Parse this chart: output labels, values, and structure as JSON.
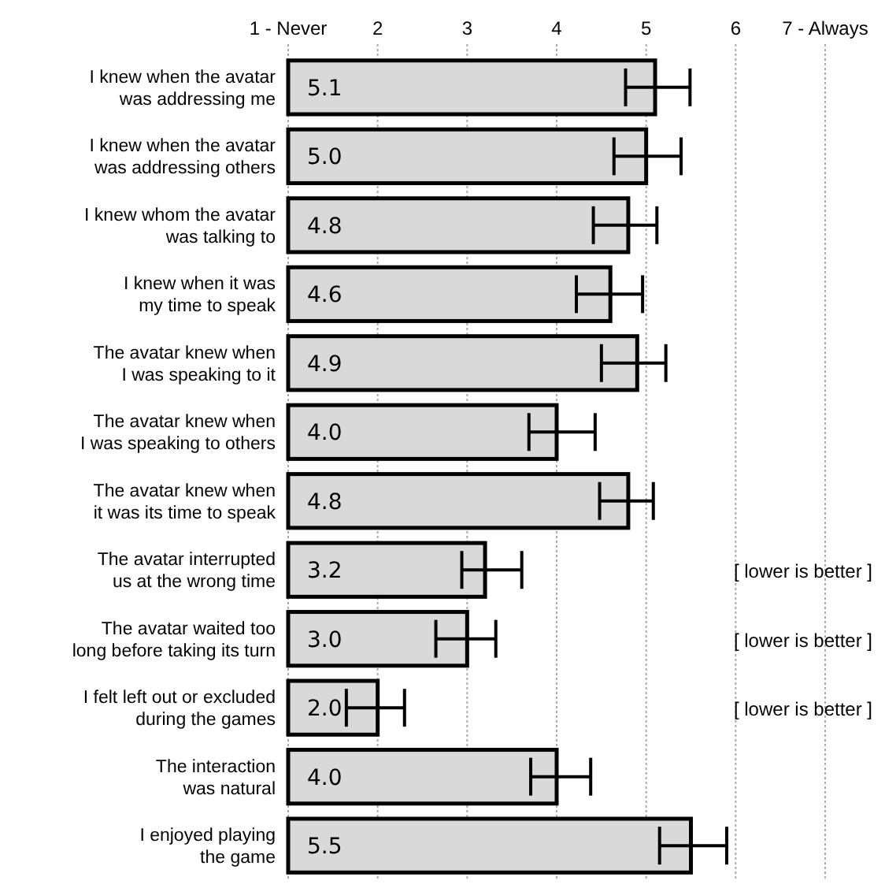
{
  "chart_data": {
    "type": "bar",
    "orientation": "horizontal",
    "categories": [
      "I knew when the avatar\nwas addressing me",
      "I knew when the avatar\nwas addressing others",
      "I knew whom the avatar\nwas talking to",
      "I knew when it was\nmy time to speak",
      "The avatar knew when\nI was speaking to it",
      "The avatar knew when\nI was speaking to others",
      "The avatar knew when\nit was its time to speak",
      "The avatar interrupted\nus at the wrong time",
      "The avatar waited too\nlong before taking its turn",
      "I felt left out or excluded\nduring the games",
      "The interaction\nwas natural",
      "I enjoyed playing\nthe game"
    ],
    "values": [
      5.1,
      5.0,
      4.8,
      4.6,
      4.9,
      4.0,
      4.8,
      3.2,
      3.0,
      2.0,
      4.0,
      5.5
    ],
    "value_labels": [
      "5.1",
      "5.0",
      "4.8",
      "4.6",
      "4.9",
      "4.0",
      "4.8",
      "3.2",
      "3.0",
      "2.0",
      "4.0",
      "5.5"
    ],
    "errors": [
      [
        4.77,
        5.49
      ],
      [
        4.64,
        5.39
      ],
      [
        4.41,
        5.12
      ],
      [
        4.22,
        4.96
      ],
      [
        4.5,
        5.22
      ],
      [
        3.69,
        4.43
      ],
      [
        4.48,
        5.08
      ],
      [
        2.94,
        3.61
      ],
      [
        2.65,
        3.32
      ],
      [
        1.65,
        2.3
      ],
      [
        3.71,
        4.38
      ],
      [
        5.15,
        5.9
      ]
    ],
    "color": "#d9d9d9",
    "xlim": [
      1,
      7
    ],
    "xticks": [
      {
        "value": 1,
        "label": "1 - Never"
      },
      2,
      3,
      4,
      5,
      6,
      {
        "value": 7,
        "label": "7 - Always"
      }
    ],
    "grid": "x",
    "annotations": [
      "[ lower is better ]",
      "[ lower is better ]",
      "[ lower is better ]"
    ]
  }
}
